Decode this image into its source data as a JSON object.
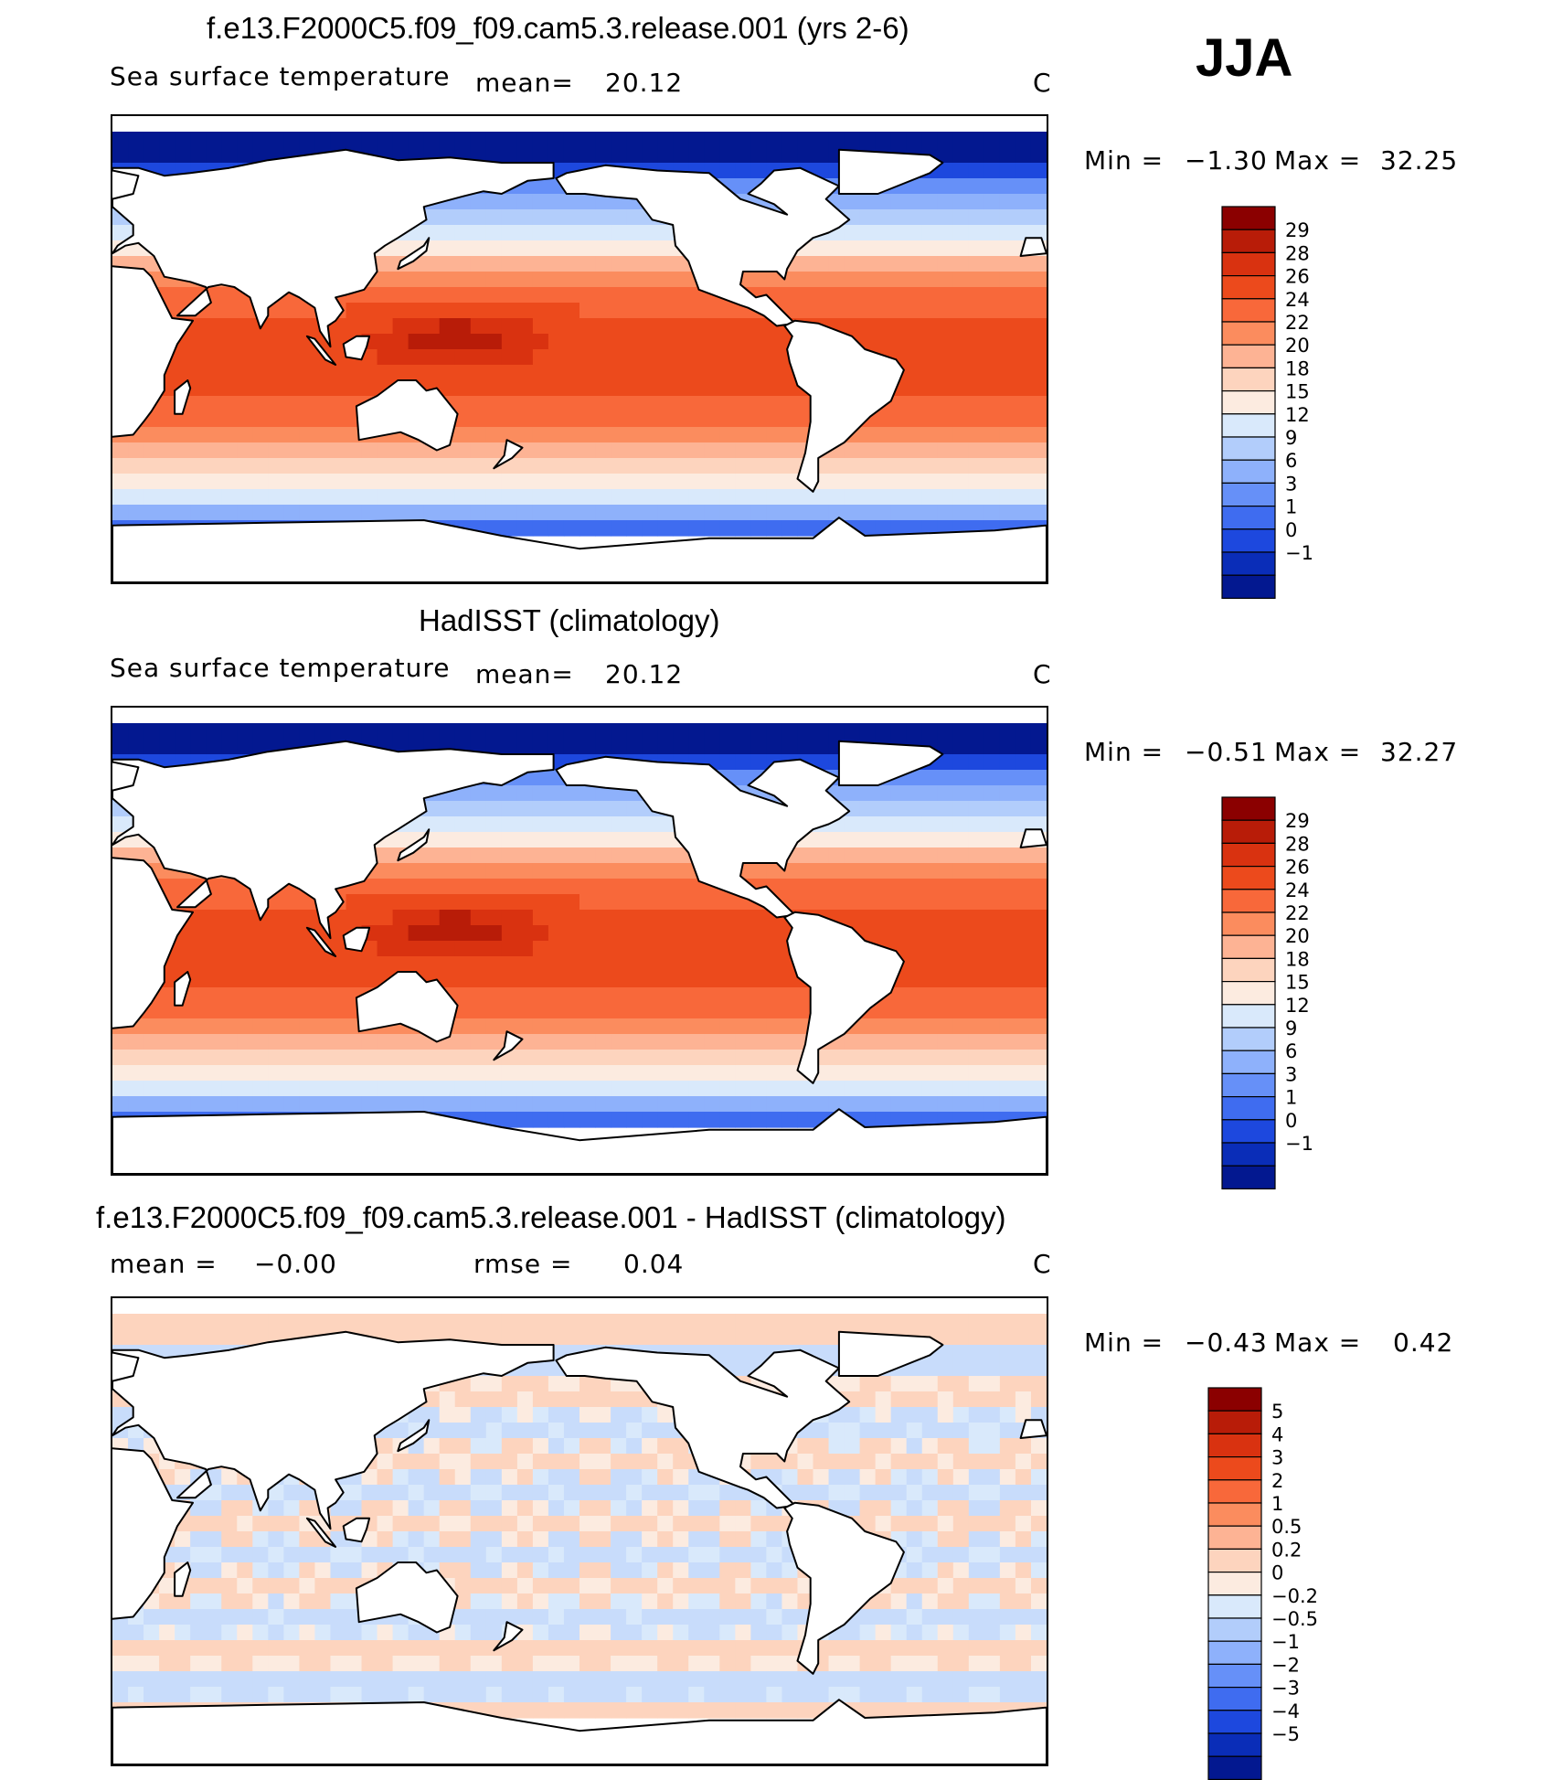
{
  "season": "JJA",
  "panels": [
    {
      "id": "model",
      "title": "f.e13.F2000C5.f09_f09.cam5.3.release.001 (yrs 2-6)",
      "variable": "Sea surface temperature",
      "stat_label": "mean=",
      "stat_value": "20.12",
      "units": "C",
      "min_label": "Min =",
      "min_value": "−1.30",
      "max_label": "Max =",
      "max_value": "32.25",
      "colorbar": {
        "labels": [
          "29",
          "28",
          "26",
          "24",
          "22",
          "20",
          "18",
          "15",
          "12",
          "9",
          "6",
          "3",
          "1",
          "0",
          "−1"
        ],
        "colors": [
          "#8b0000",
          "#b81c08",
          "#d93210",
          "#ec4a1c",
          "#f8683a",
          "#fb8c5e",
          "#fdb394",
          "#fdd4be",
          "#fcebe0",
          "#d9e9fb",
          "#b2cdfb",
          "#8eb1fb",
          "#6690f8",
          "#3f6cf0",
          "#1d48de",
          "#0a2db8",
          "#031890"
        ]
      },
      "field": "sst"
    },
    {
      "id": "obs",
      "title": "HadISST (climatology)",
      "variable": "Sea surface temperature",
      "stat_label": "mean=",
      "stat_value": "20.12",
      "units": "C",
      "min_label": "Min =",
      "min_value": "−0.51",
      "max_label": "Max =",
      "max_value": "32.27",
      "colorbar": {
        "labels": [
          "29",
          "28",
          "26",
          "24",
          "22",
          "20",
          "18",
          "15",
          "12",
          "9",
          "6",
          "3",
          "1",
          "0",
          "−1"
        ],
        "colors": [
          "#8b0000",
          "#b81c08",
          "#d93210",
          "#ec4a1c",
          "#f8683a",
          "#fb8c5e",
          "#fdb394",
          "#fdd4be",
          "#fcebe0",
          "#d9e9fb",
          "#b2cdfb",
          "#8eb1fb",
          "#6690f8",
          "#3f6cf0",
          "#1d48de",
          "#0a2db8",
          "#031890"
        ]
      },
      "field": "sst"
    },
    {
      "id": "diff",
      "title": "f.e13.F2000C5.f09_f09.cam5.3.release.001 - HadISST (climatology)",
      "stat_label": "mean =",
      "stat_value": "−0.00",
      "rmse_label": "rmse =",
      "rmse_value": "0.04",
      "units": "C",
      "min_label": "Min =",
      "min_value": "−0.43",
      "max_label": "Max =",
      "max_value": "0.42",
      "colorbar": {
        "labels": [
          "5",
          "4",
          "3",
          "2",
          "1",
          "0.5",
          "0.2",
          "0",
          "−0.2",
          "−0.5",
          "−1",
          "−2",
          "−3",
          "−4",
          "−5"
        ],
        "colors": [
          "#8b0000",
          "#b81c08",
          "#d93210",
          "#ec4a1c",
          "#f8683a",
          "#fb8c5e",
          "#fdb394",
          "#fdd4be",
          "#fcebe0",
          "#d9e9fb",
          "#b2cdfb",
          "#8eb1fb",
          "#6690f8",
          "#3f6cf0",
          "#1d48de",
          "#0a2db8",
          "#031890"
        ]
      },
      "field": "diff"
    }
  ]
}
